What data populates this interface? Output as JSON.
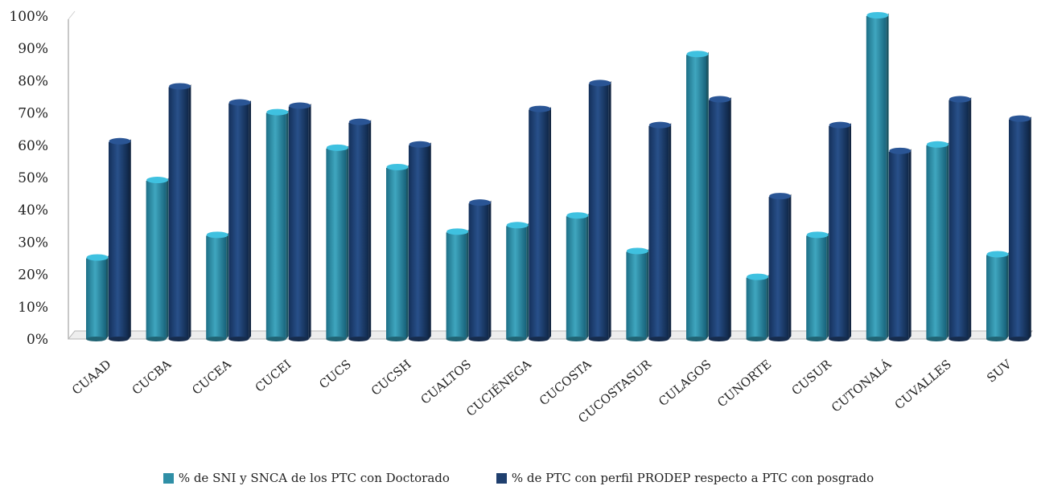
{
  "chart_data": {
    "type": "bar",
    "title": "",
    "xlabel": "",
    "ylabel": "",
    "ylim": [
      0,
      100
    ],
    "yticks": [
      "0%",
      "10%",
      "20%",
      "30%",
      "40%",
      "50%",
      "60%",
      "70%",
      "80%",
      "90%",
      "100%"
    ],
    "categories": [
      "CUAAD",
      "CUCBA",
      "CUCEA",
      "CUCEI",
      "CUCS",
      "CUCSH",
      "CUALTOS",
      "CUCIÉNEGA",
      "CUCOSTA",
      "CUCOSTASUR",
      "CULAGOS",
      "CUNORTE",
      "CUSUR",
      "CUTONALÁ",
      "CUVALLES",
      "SUV"
    ],
    "series": [
      {
        "name": "% de SNI y SNCA de los PTC con Doctorado",
        "color": "#2f8fa6",
        "values": [
          25,
          49,
          32,
          70,
          59,
          53,
          33,
          35,
          38,
          27,
          88,
          19,
          32,
          100,
          60,
          26
        ]
      },
      {
        "name": "% de PTC con perfil PRODEP respecto a PTC con posgrado",
        "color": "#1f3f6e",
        "values": [
          61,
          78,
          73,
          72,
          67,
          60,
          42,
          71,
          79,
          66,
          74,
          44,
          66,
          58,
          74,
          68
        ]
      }
    ],
    "legend_position": "bottom",
    "grid": false
  }
}
